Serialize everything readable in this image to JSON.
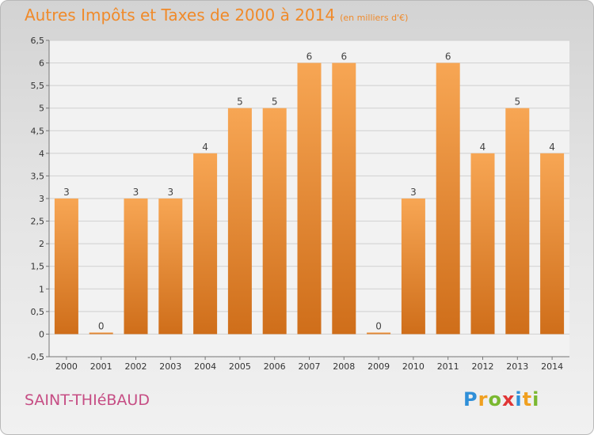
{
  "header": {
    "title": "Autres Impôts et Taxes de 2000 à 2014",
    "unit": "(en milliers d'€)"
  },
  "commune": "SAINT-THIéBAUD",
  "logo": {
    "letters": [
      "P",
      "r",
      "o",
      "x",
      "i",
      "t",
      "i"
    ],
    "colors": [
      "#2f8fd8",
      "#f0a020",
      "#7ab830",
      "#e03535",
      "#2f8fd8",
      "#f0a020",
      "#7ab830"
    ]
  },
  "colors": {
    "bar_light": "#f7a654",
    "bar_dark": "#cf6e1a",
    "title": "#f08a2a",
    "commune": "#c64d84"
  },
  "chart_data": {
    "type": "bar",
    "categories": [
      "2000",
      "2001",
      "2002",
      "2003",
      "2004",
      "2005",
      "2006",
      "2007",
      "2008",
      "2009",
      "2010",
      "2011",
      "2012",
      "2013",
      "2014"
    ],
    "values": [
      3,
      0,
      3,
      3,
      4,
      5,
      5,
      6,
      6,
      0,
      3,
      6,
      4,
      5,
      4
    ],
    "labels": [
      "3",
      "0",
      "3",
      "3",
      "4",
      "5",
      "5",
      "6",
      "6",
      "0",
      "3",
      "6",
      "4",
      "5",
      "4"
    ],
    "title": "Autres Impôts et Taxes de 2000 à 2014",
    "xlabel": "",
    "ylabel": "",
    "ylim": [
      -0.5,
      6.5
    ],
    "yticks": [
      -0.5,
      0,
      0.5,
      1,
      1.5,
      2,
      2.5,
      3,
      3.5,
      4,
      4.5,
      5,
      5.5,
      6,
      6.5
    ],
    "ytick_labels": [
      "-0,5",
      "0",
      "0,5",
      "1",
      "1,5",
      "2",
      "2,5",
      "3",
      "3,5",
      "4",
      "4,5",
      "5",
      "5,5",
      "6",
      "6,5"
    ],
    "grid": true,
    "legend": "none"
  }
}
